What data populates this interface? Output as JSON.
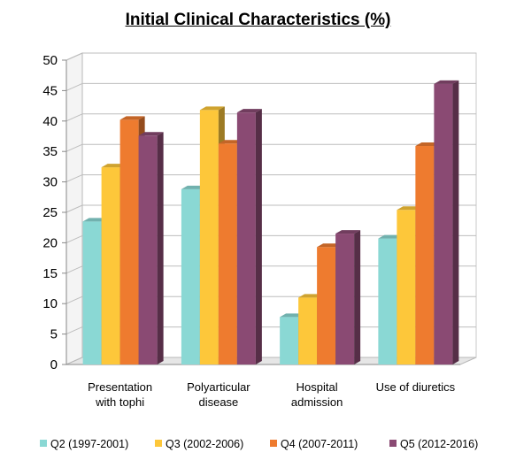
{
  "chart_data": {
    "type": "bar",
    "title": "Initial Clinical Characteristics (%)",
    "categories": [
      [
        "Presentation",
        "with tophi"
      ],
      [
        "Polyarticular",
        "disease"
      ],
      [
        "Hospital",
        "admission"
      ],
      [
        "Use of diuretics"
      ]
    ],
    "series": [
      {
        "name": "Q2 (1997-2001)",
        "color": "#8ad8d4",
        "values": [
          23.5,
          28.8,
          7.8,
          20.7
        ]
      },
      {
        "name": "Q3 (2002-2006)",
        "color": "#fdc73a",
        "values": [
          32.4,
          41.8,
          11.0,
          25.4
        ]
      },
      {
        "name": "Q4  (2007-2011)",
        "color": "#ee7b2f",
        "values": [
          40.2,
          36.3,
          19.3,
          35.9
        ]
      },
      {
        "name": "Q5 (2012-2016)",
        "color": "#8a4a73",
        "values": [
          37.6,
          41.4,
          21.5,
          46.1
        ]
      }
    ],
    "ylim": [
      0,
      50
    ],
    "yticks": [
      0,
      5,
      10,
      15,
      20,
      25,
      30,
      35,
      40,
      45,
      50
    ],
    "grid": true,
    "legend_position": "bottom"
  }
}
